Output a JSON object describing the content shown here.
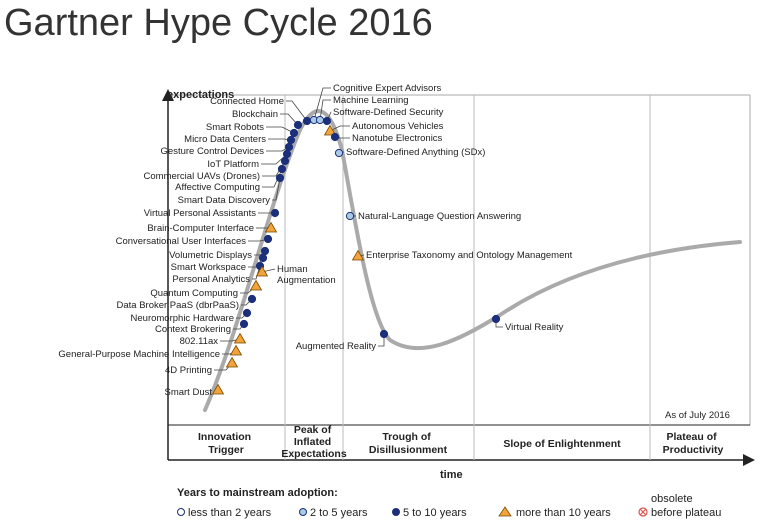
{
  "title": "Gartner Hype Cycle 2016",
  "axis": {
    "y_label": "expectations",
    "x_label": "time"
  },
  "as_of": "As of July 2016",
  "phases": [
    {
      "lines": [
        "Innovation",
        "Trigger"
      ]
    },
    {
      "lines": [
        "Peak of",
        "Inflated",
        "Expectations"
      ]
    },
    {
      "lines": [
        "Trough of",
        "Disillusionment"
      ]
    },
    {
      "lines": [
        "Slope of Enlightenment"
      ]
    },
    {
      "lines": [
        "Plateau of",
        "Productivity"
      ]
    }
  ],
  "legend": {
    "title": "Years to mainstream adoption:",
    "items": [
      {
        "key": "lt2",
        "label": "less than 2 years"
      },
      {
        "key": "2to5",
        "label": "2 to 5 years"
      },
      {
        "key": "5to10",
        "label": "5 to 10 years"
      },
      {
        "key": "gt10",
        "label": "more than 10 years"
      },
      {
        "key": "obsolete",
        "label_lines": [
          "obsolete",
          "before plateau"
        ]
      }
    ]
  },
  "colors": {
    "curve": "#aaaaaa",
    "lt2": "#ffffff",
    "2to5": "#a9cbe6",
    "5to10": "#1c2f7a",
    "gt10": "#f2a33a",
    "obsolete": "#d9534f"
  },
  "technologies": [
    {
      "name": "Connected Home",
      "cat": "5to10"
    },
    {
      "name": "Blockchain",
      "cat": "5to10"
    },
    {
      "name": "Smart Robots",
      "cat": "5to10"
    },
    {
      "name": "Micro Data Centers",
      "cat": "5to10"
    },
    {
      "name": "Gesture Control Devices",
      "cat": "5to10"
    },
    {
      "name": "IoT Platform",
      "cat": "5to10"
    },
    {
      "name": "Commercial UAVs (Drones)",
      "cat": "5to10"
    },
    {
      "name": "Affective Computing",
      "cat": "5to10"
    },
    {
      "name": "Smart Data Discovery",
      "cat": "5to10"
    },
    {
      "name": "Virtual Personal Assistants",
      "cat": "5to10"
    },
    {
      "name": "Brain-Computer Interface",
      "cat": "gt10"
    },
    {
      "name": "Conversational User Interfaces",
      "cat": "5to10"
    },
    {
      "name": "Volumetric Displays",
      "cat": "5to10"
    },
    {
      "name": "Smart Workspace",
      "cat": "5to10"
    },
    {
      "name": "Personal Analytics",
      "cat": "5to10"
    },
    {
      "name": "Quantum Computing",
      "cat": "gt10"
    },
    {
      "name": "Data Broker PaaS (dbrPaaS)",
      "cat": "5to10"
    },
    {
      "name": "Neuromorphic Hardware",
      "cat": "5to10"
    },
    {
      "name": "Context Brokering",
      "cat": "5to10"
    },
    {
      "name": "802.11ax",
      "cat": "gt10"
    },
    {
      "name": "General-Purpose Machine Intelligence",
      "cat": "gt10"
    },
    {
      "name": "4D Printing",
      "cat": "gt10"
    },
    {
      "name": "Smart Dust",
      "cat": "gt10"
    },
    {
      "name": "Human Augmentation",
      "cat": "gt10",
      "label_lines": [
        "Human",
        "Augmentation"
      ]
    },
    {
      "name": "Cognitive Expert Advisors",
      "cat": "2to5"
    },
    {
      "name": "Machine Learning",
      "cat": "2to5"
    },
    {
      "name": "Software-Defined Security",
      "cat": "5to10"
    },
    {
      "name": "Autonomous Vehicles",
      "cat": "gt10"
    },
    {
      "name": "Nanotube Electronics",
      "cat": "5to10"
    },
    {
      "name": "Software-Defined Anything (SDx)",
      "cat": "2to5"
    },
    {
      "name": "Natural-Language Question Answering",
      "cat": "2to5"
    },
    {
      "name": "Enterprise Taxonomy and Ontology Management",
      "cat": "gt10"
    },
    {
      "name": "Augmented Reality",
      "cat": "5to10"
    },
    {
      "name": "Virtual Reality",
      "cat": "5to10"
    }
  ]
}
